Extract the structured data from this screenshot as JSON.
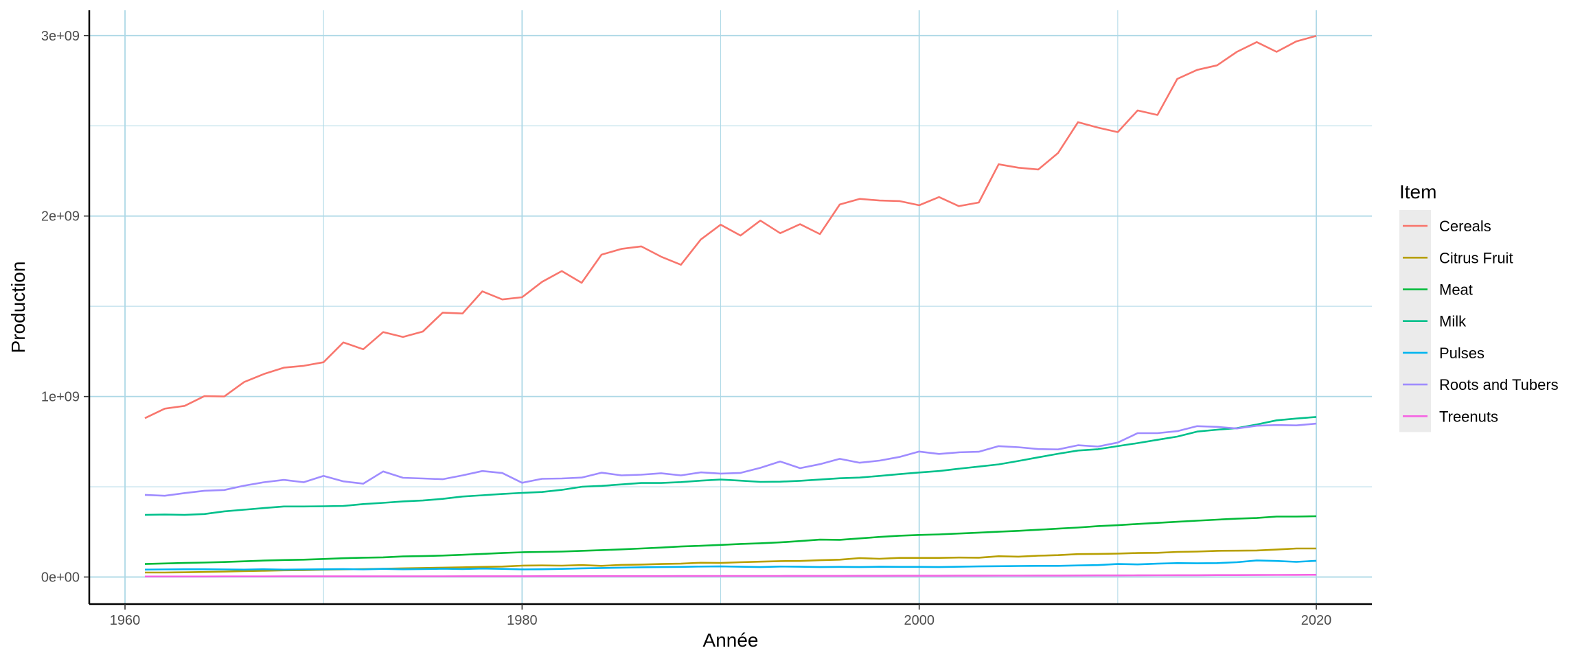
{
  "chart_data": {
    "type": "line",
    "title": "",
    "xlabel": "Année",
    "ylabel": "Production",
    "xlim": [
      1958.2,
      2022.8
    ],
    "ylim": [
      -150000000.0,
      3140000000.0
    ],
    "x_ticks": [
      1960,
      1980,
      2000,
      2020
    ],
    "x_tick_labels": [
      "1960",
      "1980",
      "2000",
      "2020"
    ],
    "y_ticks": [
      0,
      1000000000,
      2000000000,
      3000000000
    ],
    "y_tick_labels": [
      "0e+00",
      "1e+09",
      "2e+09",
      "3e+09"
    ],
    "grid": true,
    "legend": {
      "title": "Item",
      "position": "right"
    },
    "x": [
      1961,
      1962,
      1963,
      1964,
      1965,
      1966,
      1967,
      1968,
      1969,
      1970,
      1971,
      1972,
      1973,
      1974,
      1975,
      1976,
      1977,
      1978,
      1979,
      1980,
      1981,
      1982,
      1983,
      1984,
      1985,
      1986,
      1987,
      1988,
      1989,
      1990,
      1991,
      1992,
      1993,
      1994,
      1995,
      1996,
      1997,
      1998,
      1999,
      2000,
      2001,
      2002,
      2003,
      2004,
      2005,
      2006,
      2007,
      2008,
      2009,
      2010,
      2011,
      2012,
      2013,
      2014,
      2015,
      2016,
      2017,
      2018,
      2019,
      2020
    ],
    "series": [
      {
        "name": "Cereals",
        "color": "#F8766D",
        "values": [
          880000000,
          933000000,
          948000000,
          1002000000,
          1000000000,
          1080000000,
          1125000000,
          1160000000,
          1170000000,
          1190000000,
          1300000000,
          1262000000,
          1357000000,
          1330000000,
          1360000000,
          1465000000,
          1460000000,
          1583000000,
          1538000000,
          1550000000,
          1635000000,
          1695000000,
          1630000000,
          1786000000,
          1818000000,
          1832000000,
          1775000000,
          1730000000,
          1870000000,
          1952000000,
          1892000000,
          1975000000,
          1905000000,
          1955000000,
          1900000000,
          2064000000,
          2095000000,
          2086000000,
          2083000000,
          2060000000,
          2105000000,
          2055000000,
          2075000000,
          2287000000,
          2268000000,
          2258000000,
          2350000000,
          2520000000,
          2490000000,
          2465000000,
          2585000000,
          2560000000,
          2760000000,
          2810000000,
          2835000000,
          2910000000,
          2964000000,
          2910000000,
          2968000000,
          2998000000
        ]
      },
      {
        "name": "Citrus Fruit",
        "color": "#B79F00",
        "values": [
          25000000,
          25000000,
          26000000,
          28000000,
          30000000,
          33000000,
          35000000,
          37000000,
          38000000,
          40000000,
          42000000,
          44000000,
          46000000,
          48000000,
          50000000,
          52000000,
          54000000,
          56000000,
          58000000,
          63000000,
          64000000,
          63000000,
          66000000,
          62000000,
          67000000,
          69000000,
          72000000,
          74000000,
          79000000,
          78000000,
          82000000,
          85000000,
          88000000,
          89000000,
          93000000,
          96000000,
          105000000,
          101000000,
          106000000,
          106000000,
          106000000,
          108000000,
          107000000,
          115000000,
          113000000,
          118000000,
          121000000,
          127000000,
          128000000,
          130000000,
          133000000,
          134000000,
          139000000,
          141000000,
          145000000,
          146000000,
          147000000,
          152000000,
          158000000,
          158000000
        ]
      },
      {
        "name": "Meat",
        "color": "#00BA38",
        "values": [
          72000000,
          75000000,
          78000000,
          80000000,
          83000000,
          87000000,
          91000000,
          94000000,
          96000000,
          100000000,
          104000000,
          107000000,
          109000000,
          114000000,
          116000000,
          119000000,
          123000000,
          128000000,
          133000000,
          137000000,
          139000000,
          141000000,
          145000000,
          149000000,
          153000000,
          158000000,
          163000000,
          169000000,
          173000000,
          178000000,
          183000000,
          187000000,
          192000000,
          199000000,
          207000000,
          206000000,
          214000000,
          222000000,
          229000000,
          233000000,
          236000000,
          241000000,
          246000000,
          251000000,
          256000000,
          262000000,
          268000000,
          274000000,
          282000000,
          287000000,
          294000000,
          300000000,
          306000000,
          312000000,
          318000000,
          323000000,
          327000000,
          335000000,
          335000000,
          337000000
        ]
      },
      {
        "name": "Milk",
        "color": "#00C08B",
        "values": [
          344000000,
          346000000,
          344000000,
          349000000,
          364000000,
          373000000,
          382000000,
          391000000,
          391000000,
          392000000,
          394000000,
          404000000,
          411000000,
          419000000,
          424000000,
          433000000,
          446000000,
          453000000,
          460000000,
          466000000,
          471000000,
          483000000,
          500000000,
          505000000,
          513000000,
          521000000,
          521000000,
          526000000,
          534000000,
          540000000,
          534000000,
          527000000,
          528000000,
          533000000,
          540000000,
          547000000,
          551000000,
          560000000,
          570000000,
          579000000,
          587000000,
          600000000,
          612000000,
          624000000,
          643000000,
          663000000,
          683000000,
          701000000,
          708000000,
          725000000,
          742000000,
          760000000,
          778000000,
          806000000,
          816000000,
          825000000,
          845000000,
          868000000,
          878000000,
          887000000
        ]
      },
      {
        "name": "Pulses",
        "color": "#00B4EF",
        "values": [
          41000000,
          42000000,
          43000000,
          43000000,
          42000000,
          41000000,
          43000000,
          41000000,
          42000000,
          43000000,
          44000000,
          42000000,
          45000000,
          43000000,
          44000000,
          46000000,
          44000000,
          47000000,
          45000000,
          42000000,
          43000000,
          45000000,
          48000000,
          50000000,
          52000000,
          54000000,
          55000000,
          56000000,
          58000000,
          59000000,
          57000000,
          55000000,
          58000000,
          57000000,
          55000000,
          56000000,
          55000000,
          57000000,
          56000000,
          56000000,
          55000000,
          57000000,
          59000000,
          60000000,
          61000000,
          62000000,
          62000000,
          64000000,
          66000000,
          72000000,
          70000000,
          74000000,
          77000000,
          76000000,
          77000000,
          82000000,
          92000000,
          89000000,
          84000000,
          90000000
        ]
      },
      {
        "name": "Roots and Tubers",
        "color": "#9F8CFF",
        "values": [
          455000000,
          450000000,
          465000000,
          478000000,
          482000000,
          506000000,
          525000000,
          538000000,
          525000000,
          560000000,
          530000000,
          517000000,
          585000000,
          550000000,
          546000000,
          542000000,
          563000000,
          587000000,
          576000000,
          522000000,
          544000000,
          546000000,
          551000000,
          578000000,
          563000000,
          567000000,
          575000000,
          563000000,
          580000000,
          573000000,
          577000000,
          605000000,
          640000000,
          603000000,
          625000000,
          655000000,
          633000000,
          645000000,
          665000000,
          695000000,
          682000000,
          691000000,
          694000000,
          725000000,
          719000000,
          709000000,
          707000000,
          730000000,
          723000000,
          745000000,
          797000000,
          797000000,
          808000000,
          836000000,
          832000000,
          823000000,
          838000000,
          842000000,
          840000000,
          850000000
        ]
      },
      {
        "name": "Treenuts",
        "color": "#F564E3",
        "values": [
          3000000,
          3000000,
          3000000,
          3000000,
          3200000,
          3300000,
          3400000,
          3500000,
          3500000,
          3600000,
          3700000,
          3800000,
          3900000,
          4000000,
          4100000,
          4200000,
          4300000,
          4400000,
          4500000,
          4600000,
          4700000,
          4800000,
          4900000,
          5000000,
          5100000,
          5200000,
          5300000,
          5500000,
          5600000,
          5800000,
          5900000,
          6000000,
          6100000,
          6200000,
          6400000,
          6500000,
          6700000,
          6800000,
          6900000,
          7000000,
          7200000,
          7300000,
          7500000,
          7700000,
          7900000,
          8100000,
          8300000,
          8600000,
          8800000,
          9100000,
          9400000,
          9700000,
          10000000,
          10300000,
          10700000,
          11000000,
          11400000,
          11700000,
          12100000,
          12400000
        ]
      }
    ]
  }
}
